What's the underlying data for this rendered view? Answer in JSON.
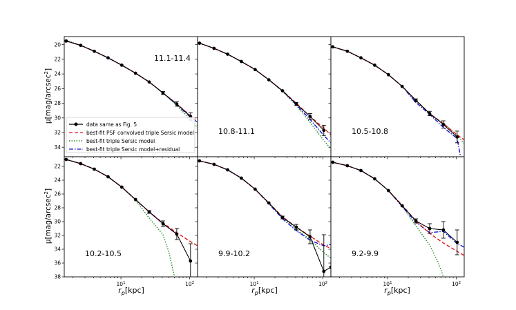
{
  "figure": {
    "ylabel": "μ[mag/arcsec²]",
    "xlabel": "r_p[kpc]",
    "xlabel_main": "r",
    "xlabel_sub": "p",
    "xlabel_unit": "[kpc]",
    "ylabel_main": "μ[mag/arcsec",
    "ylabel_sup": "2",
    "ylabel_end": "]"
  },
  "legend": {
    "placement": "lower-left of top-left panel",
    "entries": [
      {
        "label": "data same as Fig. 5",
        "series": "data"
      },
      {
        "label": "best-fit PSF convolved triple Sersic model",
        "series": "psf"
      },
      {
        "label": "best-fit triple Sersic model",
        "series": "triple"
      },
      {
        "label": "best-fit triple Sersic model+residual",
        "series": "residual"
      }
    ]
  },
  "colors": {
    "data": "#000000",
    "psf": "#e8161b",
    "triple": "#1f8a1f",
    "residual": "#1414d4"
  },
  "chart_data": {
    "type": "line",
    "x_scale": "log",
    "xlim": [
      1.5,
      130
    ],
    "x_ticks": [
      {
        "value": 10,
        "base": "10",
        "exp": "1"
      },
      {
        "value": 100,
        "base": "10",
        "exp": "2"
      }
    ],
    "rows": [
      {
        "ylim": [
          35.3,
          18.9
        ],
        "y_ticks": [
          20,
          22,
          24,
          26,
          28,
          30,
          32,
          34
        ]
      },
      {
        "ylim": [
          38,
          20.6
        ],
        "y_ticks": [
          22,
          24,
          26,
          28,
          30,
          32,
          34,
          36,
          38
        ]
      }
    ],
    "panels": [
      {
        "label": "11.1-11.4",
        "row": 0,
        "data": {
          "x": [
            1.6,
            2.6,
            4.1,
            6.5,
            10.3,
            16.3,
            25.8,
            40.9,
            64.8,
            102.7
          ],
          "y": [
            19.5,
            20.1,
            20.9,
            21.8,
            22.8,
            23.9,
            25.1,
            26.6,
            28.1,
            29.8
          ],
          "yerr": [
            0.05,
            0.05,
            0.05,
            0.05,
            0.05,
            0.05,
            0.1,
            0.2,
            0.3,
            0.5
          ]
        },
        "psf": {
          "x": [
            1.6,
            2.6,
            4.1,
            6.5,
            10.3,
            16.3,
            25.8,
            40.9,
            64.8,
            102.7,
            130
          ],
          "y": [
            19.5,
            20.1,
            20.9,
            21.8,
            22.8,
            23.9,
            25.1,
            26.6,
            28.1,
            29.7,
            30.4
          ]
        },
        "triple": {
          "x": [
            1.6,
            2.6,
            4.1,
            6.5,
            10.3,
            16.3,
            25.8,
            40.9,
            64.8,
            102.7,
            130
          ],
          "y": [
            19.4,
            20.1,
            20.9,
            21.8,
            22.8,
            23.9,
            25.1,
            26.6,
            28.3,
            30.3,
            31.3
          ]
        },
        "residual": {
          "x": [
            1.6,
            2.6,
            4.1,
            6.5,
            10.3,
            16.3,
            25.8,
            40.9,
            64.8,
            102.7,
            130
          ],
          "y": [
            19.5,
            20.1,
            20.9,
            21.8,
            22.8,
            23.9,
            25.1,
            26.6,
            28.2,
            29.9,
            30.6
          ]
        }
      },
      {
        "label": "10.8-11.1",
        "row": 0,
        "data": {
          "x": [
            1.6,
            2.6,
            4.1,
            6.5,
            10.3,
            16.3,
            25.8,
            40.9,
            64.8,
            102.7
          ],
          "y": [
            19.8,
            20.5,
            21.3,
            22.3,
            23.4,
            24.8,
            26.3,
            28.1,
            29.8,
            31.7
          ],
          "yerr": [
            0.05,
            0.05,
            0.05,
            0.05,
            0.05,
            0.05,
            0.1,
            0.2,
            0.4,
            0.7
          ]
        },
        "psf": {
          "x": [
            1.6,
            2.6,
            4.1,
            6.5,
            10.3,
            16.3,
            25.8,
            40.9,
            64.8,
            102.7,
            130
          ],
          "y": [
            19.8,
            20.5,
            21.3,
            22.3,
            23.4,
            24.8,
            26.3,
            28.0,
            29.8,
            31.4,
            32.3
          ]
        },
        "triple": {
          "x": [
            1.6,
            2.6,
            4.1,
            6.5,
            10.3,
            16.3,
            25.8,
            40.9,
            64.8,
            102.7,
            130
          ],
          "y": [
            19.8,
            20.5,
            21.3,
            22.3,
            23.4,
            24.8,
            26.4,
            28.3,
            30.6,
            33.1,
            34.2
          ]
        },
        "residual": {
          "x": [
            1.6,
            2.6,
            4.1,
            6.5,
            10.3,
            16.3,
            25.8,
            40.9,
            64.8,
            102.7,
            130
          ],
          "y": [
            19.8,
            20.5,
            21.3,
            22.3,
            23.4,
            24.8,
            26.3,
            28.2,
            30.2,
            32.4,
            33.4
          ]
        }
      },
      {
        "label": "10.5-10.8",
        "row": 0,
        "data": {
          "x": [
            1.6,
            2.6,
            4.1,
            6.5,
            10.3,
            16.3,
            25.8,
            40.9,
            64.8,
            102.7
          ],
          "y": [
            20.3,
            20.9,
            21.8,
            22.8,
            24.1,
            25.7,
            27.6,
            29.4,
            30.9,
            32.6
          ],
          "yerr": [
            0.05,
            0.05,
            0.05,
            0.05,
            0.05,
            0.1,
            0.2,
            0.3,
            0.5,
            0.8
          ]
        },
        "psf": {
          "x": [
            1.6,
            2.6,
            4.1,
            6.5,
            10.3,
            16.3,
            25.8,
            40.9,
            64.8,
            102.7,
            130
          ],
          "y": [
            20.3,
            20.9,
            21.8,
            22.8,
            24.1,
            25.7,
            27.6,
            29.4,
            30.8,
            32.3,
            33.0
          ]
        },
        "triple": {
          "x": [
            1.6,
            2.6,
            4.1,
            6.5,
            10.3,
            16.3,
            25.8,
            40.9,
            64.8,
            102.7,
            130
          ],
          "y": [
            20.3,
            20.9,
            21.8,
            22.8,
            24.1,
            25.7,
            27.7,
            29.5,
            30.7,
            32.4,
            33.5
          ]
        },
        "residual": {
          "x": [
            1.6,
            2.6,
            4.1,
            6.5,
            10.3,
            16.3,
            25.8,
            40.9,
            64.8,
            102.7,
            115
          ],
          "y": [
            20.3,
            20.9,
            21.8,
            22.8,
            24.1,
            25.7,
            27.9,
            29.5,
            31.3,
            32.8,
            35.3
          ]
        }
      },
      {
        "label": "10.2-10.5",
        "row": 1,
        "data": {
          "x": [
            1.6,
            2.6,
            4.1,
            6.5,
            10.3,
            16.3,
            25.8,
            40.9,
            64.8,
            102.7
          ],
          "y": [
            21.0,
            21.6,
            22.4,
            23.5,
            25.0,
            26.8,
            28.6,
            30.3,
            31.8,
            35.7
          ],
          "yerr": [
            0.05,
            0.05,
            0.05,
            0.05,
            0.05,
            0.1,
            0.2,
            0.4,
            0.8,
            2.5
          ]
        },
        "psf": {
          "x": [
            1.6,
            2.6,
            4.1,
            6.5,
            10.3,
            16.3,
            25.8,
            40.9,
            64.8,
            102.7,
            130
          ],
          "y": [
            21.0,
            21.6,
            22.4,
            23.5,
            25.0,
            26.8,
            28.6,
            30.2,
            31.6,
            32.9,
            33.5
          ]
        },
        "triple": {
          "x": [
            1.6,
            2.6,
            4.1,
            6.5,
            10.3,
            16.3,
            25.8,
            40.9,
            50,
            60
          ],
          "y": [
            21.0,
            21.6,
            22.4,
            23.5,
            25.0,
            26.9,
            29.5,
            31.9,
            34.5,
            38.0
          ]
        },
        "residual": {
          "x": [
            1.6,
            2.6,
            4.1,
            6.5,
            10.3,
            16.3,
            25.8,
            40.9,
            64.8
          ],
          "y": [
            21.0,
            21.6,
            22.4,
            23.5,
            25.0,
            26.8,
            28.6,
            30.3,
            31.8
          ]
        }
      },
      {
        "label": "9.9-10.2",
        "row": 1,
        "data": {
          "x": [
            1.6,
            2.6,
            4.1,
            6.5,
            10.3,
            16.3,
            25.8,
            40.9,
            64.8,
            102.7,
            130
          ],
          "y": [
            21.2,
            21.7,
            22.5,
            23.7,
            25.3,
            27.3,
            29.4,
            30.8,
            32.2,
            37.2,
            36.6
          ],
          "yerr": [
            0.05,
            0.05,
            0.05,
            0.05,
            0.05,
            0.1,
            0.2,
            0.4,
            1.0,
            5.3,
            0.0
          ]
        },
        "psf": {
          "x": [
            1.6,
            2.6,
            4.1,
            6.5,
            10.3,
            16.3,
            25.8,
            40.9,
            64.8,
            102.7,
            130
          ],
          "y": [
            21.2,
            21.7,
            22.5,
            23.7,
            25.3,
            27.3,
            29.3,
            30.8,
            32.1,
            33.4,
            33.9
          ]
        },
        "triple": {
          "x": [
            1.6,
            2.6,
            4.1,
            6.5,
            10.3,
            16.3,
            25.8,
            40.9,
            64.8,
            102.7,
            130
          ],
          "y": [
            21.2,
            21.7,
            22.5,
            23.7,
            25.3,
            27.3,
            29.4,
            31.1,
            32.6,
            34.5,
            35.3
          ]
        },
        "residual": {
          "x": [
            1.6,
            2.6,
            4.1,
            6.5,
            10.3,
            16.3,
            25.8,
            40.9,
            64.8,
            102.7,
            130
          ],
          "y": [
            21.2,
            21.7,
            22.5,
            23.7,
            25.3,
            27.4,
            29.6,
            31.3,
            32.7,
            33.5,
            33.3
          ]
        }
      },
      {
        "label": "9.2-9.9",
        "row": 1,
        "data": {
          "x": [
            1.6,
            2.6,
            4.1,
            6.5,
            10.3,
            16.3,
            25.8,
            40.9,
            64.8,
            102.7
          ],
          "y": [
            21.4,
            21.9,
            22.6,
            23.8,
            25.5,
            27.7,
            29.9,
            31.0,
            31.2,
            33.0
          ],
          "yerr": [
            0.05,
            0.05,
            0.05,
            0.05,
            0.05,
            0.1,
            0.3,
            0.7,
            1.2,
            1.8
          ]
        },
        "psf": {
          "x": [
            1.6,
            2.6,
            4.1,
            6.5,
            10.3,
            16.3,
            25.8,
            40.9,
            64.8,
            102.7,
            130
          ],
          "y": [
            21.4,
            21.9,
            22.6,
            23.8,
            25.5,
            27.6,
            29.9,
            31.7,
            33.1,
            34.3,
            34.9
          ]
        },
        "triple": {
          "x": [
            1.6,
            2.6,
            4.1,
            6.5,
            10.3,
            16.3,
            25.8,
            40.9,
            55,
            65
          ],
          "y": [
            21.4,
            21.9,
            22.6,
            23.8,
            25.5,
            27.8,
            30.6,
            33.4,
            36.0,
            38.0
          ]
        },
        "residual": {
          "x": [
            1.6,
            2.6,
            4.1,
            6.5,
            10.3,
            16.3,
            25.8,
            40.9,
            64.8,
            102.7,
            130
          ],
          "y": [
            21.4,
            21.9,
            22.6,
            23.8,
            25.5,
            27.8,
            30.1,
            31.6,
            31.4,
            33.2,
            33.7
          ]
        }
      }
    ]
  }
}
